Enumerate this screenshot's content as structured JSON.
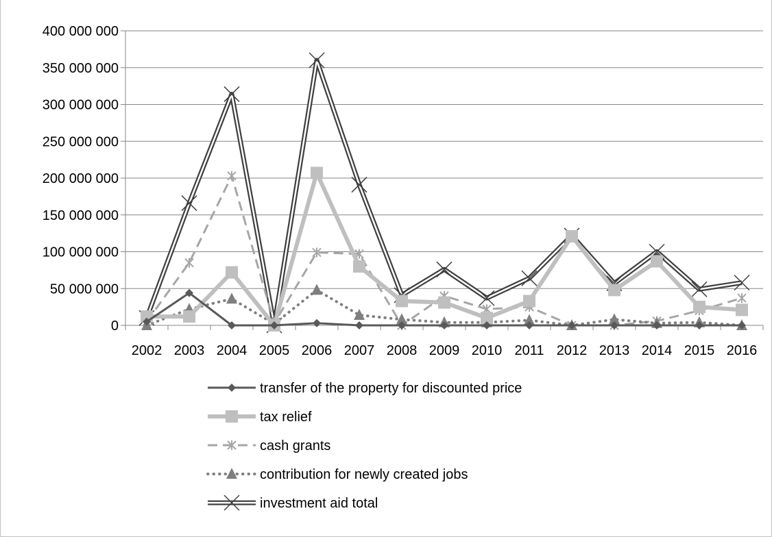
{
  "chart_data": {
    "type": "line",
    "title": "",
    "xlabel": "",
    "ylabel": "",
    "categories": [
      "2002",
      "2003",
      "2004",
      "2005",
      "2006",
      "2007",
      "2008",
      "2009",
      "2010",
      "2011",
      "2012",
      "2013",
      "2014",
      "2015",
      "2016"
    ],
    "ylim": [
      0,
      400000000
    ],
    "yticks": [
      0,
      50000000,
      100000000,
      150000000,
      200000000,
      250000000,
      300000000,
      350000000,
      400000000
    ],
    "ytick_labels": [
      "0",
      "50 000 000",
      "100 000 000",
      "150 000 000",
      "200 000 000",
      "250 000 000",
      "300 000 000",
      "350 000 000",
      "400 000 000"
    ],
    "grid": "horizontal",
    "legend_position": "bottom",
    "series": [
      {
        "name": "transfer of the property for discounted price",
        "values": [
          5000000,
          44000000,
          0,
          0,
          3000000,
          0,
          0,
          0,
          0,
          0,
          0,
          0,
          0,
          0,
          0
        ],
        "color": "#595959",
        "style": "solid-diamond"
      },
      {
        "name": "tax relief",
        "values": [
          12000000,
          12000000,
          72000000,
          0,
          207000000,
          80000000,
          33000000,
          31000000,
          10000000,
          33000000,
          121000000,
          48000000,
          87000000,
          25000000,
          21000000
        ],
        "color": "#bfbfbf",
        "style": "thick-square"
      },
      {
        "name": "cash grants",
        "values": [
          5000000,
          85000000,
          203000000,
          3000000,
          99000000,
          97000000,
          0,
          40000000,
          22000000,
          25000000,
          0,
          0,
          6000000,
          20000000,
          37000000
        ],
        "color": "#a6a6a6",
        "style": "dashed-star"
      },
      {
        "name": "contribution for newly created jobs",
        "values": [
          0,
          22000000,
          36000000,
          2000000,
          48000000,
          14000000,
          8000000,
          4000000,
          4000000,
          7000000,
          0,
          8000000,
          3000000,
          4000000,
          0
        ],
        "color": "#7f7f7f",
        "style": "dotted-triangle"
      },
      {
        "name": "investment aid total",
        "values": [
          10000000,
          166000000,
          314000000,
          0,
          360000000,
          191000000,
          41000000,
          76000000,
          37000000,
          64000000,
          122000000,
          57000000,
          100000000,
          49000000,
          58000000
        ],
        "color": "#404040",
        "style": "double-x"
      }
    ]
  }
}
